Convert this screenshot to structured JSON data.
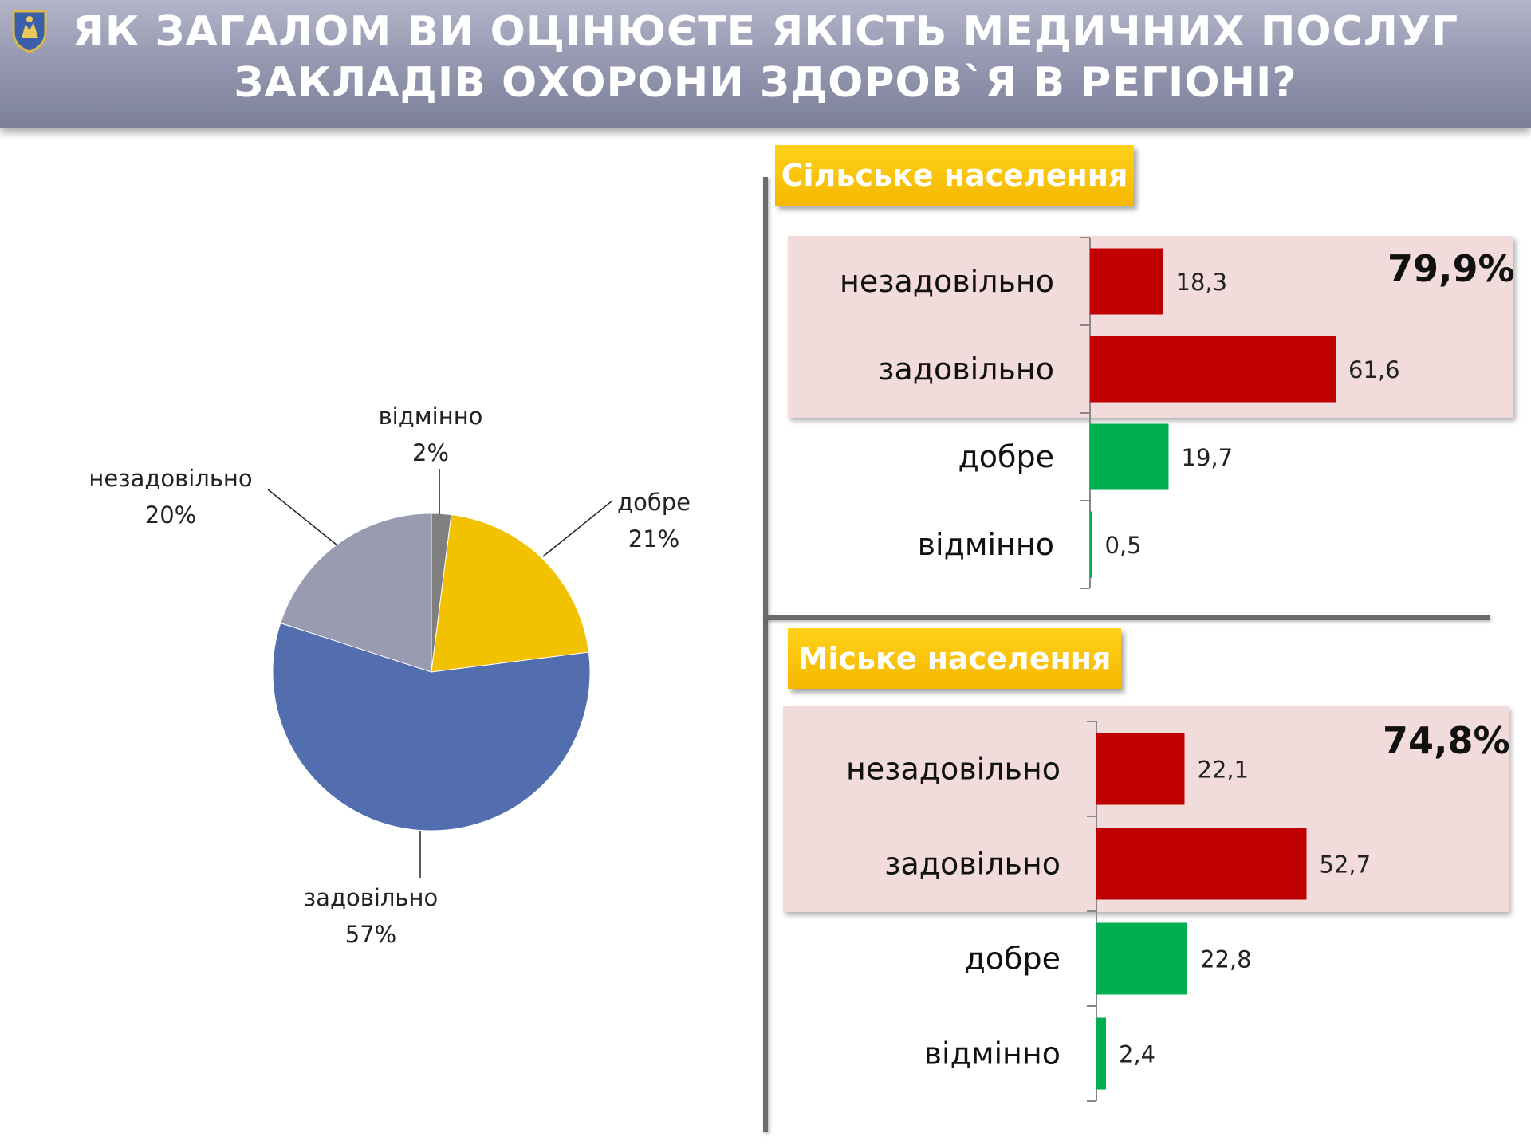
{
  "header": {
    "title_line1": "ЯК ЗАГАЛОМ ВИ ОЦІНЮЄТЕ ЯКІСТЬ МЕДИЧНИХ ПОСЛУГ",
    "title_line2": "ЗАКЛАДІВ ОХОРОНИ ЗДОРОВ`Я В РЕГІОНІ?"
  },
  "chart_data": [
    {
      "type": "pie",
      "slices": [
        {
          "name": "відмінно",
          "value": 2,
          "label": "2%",
          "color": "#7f7f7f"
        },
        {
          "name": "добре",
          "value": 21,
          "label": "21%",
          "color": "#f2c200"
        },
        {
          "name": "задовільно",
          "value": 57,
          "label": "57%",
          "color": "#536eaf"
        },
        {
          "name": "незадовільно",
          "value": 20,
          "label": "20%",
          "color": "#999bb0"
        }
      ]
    },
    {
      "type": "bar",
      "title": "Сільське населення",
      "categories": [
        "незадовільно",
        "задовільно",
        "добре",
        "відмінно"
      ],
      "values": [
        18.3,
        61.6,
        19.7,
        0.5
      ],
      "value_labels": [
        "18,3",
        "61,6",
        "19,7",
        "0,5"
      ],
      "colors": [
        "#c00000",
        "#c00000",
        "#00b050",
        "#00b050"
      ],
      "highlight_total": "79,9%"
    },
    {
      "type": "bar",
      "title": "Міське населення",
      "categories": [
        "незадовільно",
        "задовільно",
        "добре",
        "відмінно"
      ],
      "values": [
        22.1,
        52.7,
        22.8,
        2.4
      ],
      "value_labels": [
        "22,1",
        "52,7",
        "22,8",
        "2,4"
      ],
      "colors": [
        "#c00000",
        "#c00000",
        "#00b050",
        "#00b050"
      ],
      "highlight_total": "74,8%"
    }
  ]
}
